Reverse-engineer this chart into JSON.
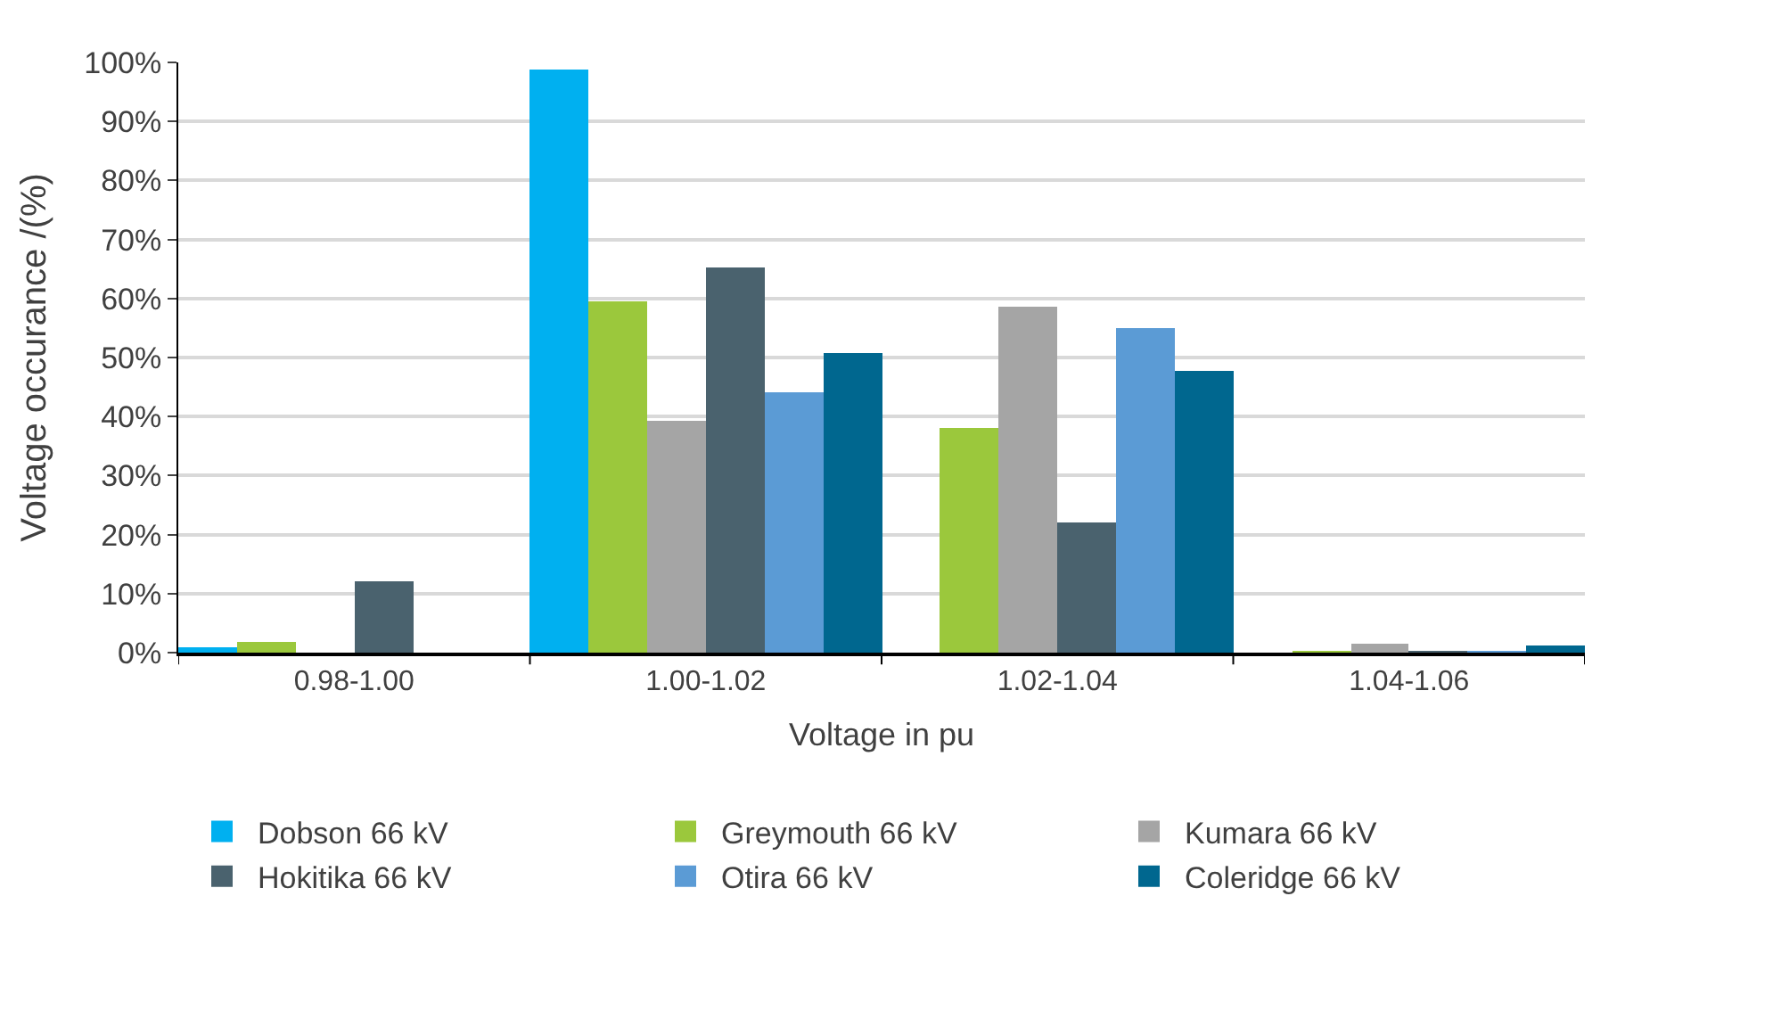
{
  "chart_data": {
    "type": "bar",
    "xlabel": "Voltage in pu",
    "ylabel": "Voltage occurance /(%)",
    "categories": [
      "0.98-1.00",
      "1.00-1.02",
      "1.02-1.04",
      "1.04-1.06"
    ],
    "series": [
      {
        "name": "Dobson 66 kV",
        "color": "#00b0f0",
        "values": [
          0.8,
          98.8,
          0,
          0
        ]
      },
      {
        "name": "Greymouth 66 kV",
        "color": "#9bc83c",
        "values": [
          1.7,
          59.5,
          38,
          0.2
        ]
      },
      {
        "name": "Kumara 66 kV",
        "color": "#a5a5a5",
        "values": [
          0,
          39.4,
          58.7,
          1.4
        ]
      },
      {
        "name": "Hokitika 66 kV",
        "color": "#4a626e",
        "values": [
          12,
          65.4,
          22,
          0.2
        ]
      },
      {
        "name": "Otira 66 kV",
        "color": "#5b9bd5",
        "values": [
          0,
          44,
          55.1,
          0.3
        ]
      },
      {
        "name": "Coleridge 66 kV",
        "color": "#00678f",
        "values": [
          0,
          50.7,
          47.8,
          1.2
        ]
      }
    ],
    "ylim": [
      0,
      100
    ],
    "yticks": [
      {
        "value": 0,
        "label": "0%"
      },
      {
        "value": 10,
        "label": "10%"
      },
      {
        "value": 20,
        "label": "20%"
      },
      {
        "value": 30,
        "label": "30%"
      },
      {
        "value": 40,
        "label": "40%"
      },
      {
        "value": 50,
        "label": "50%"
      },
      {
        "value": 60,
        "label": "60%"
      },
      {
        "value": 70,
        "label": "70%"
      },
      {
        "value": 80,
        "label": "80%"
      },
      {
        "value": 90,
        "label": "90%"
      },
      {
        "value": 100,
        "label": "100%"
      }
    ],
    "grid": "y",
    "legend": "bottom"
  }
}
